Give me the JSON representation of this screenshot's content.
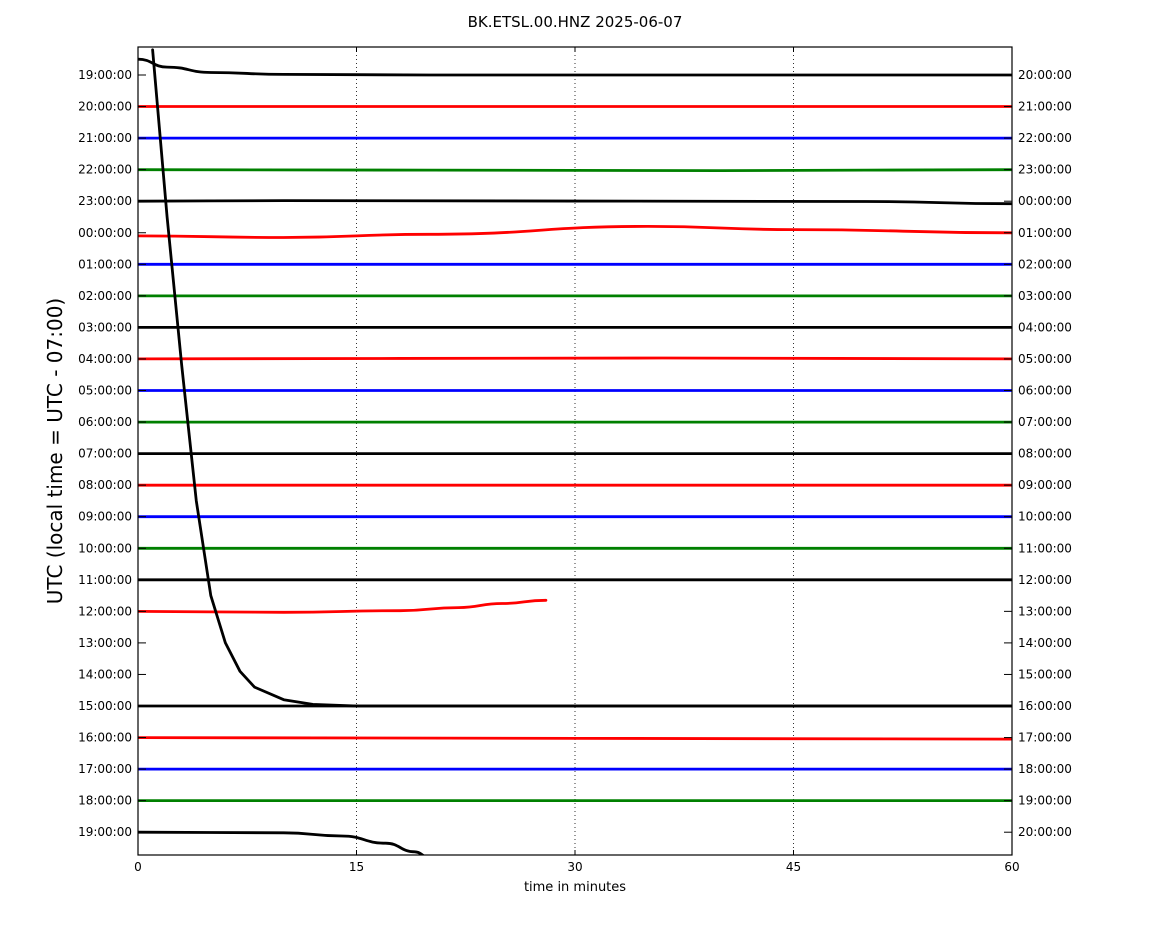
{
  "chart_data": {
    "type": "line",
    "title": "BK.ETSL.00.HNZ 2025-06-07",
    "xlabel": "time in minutes",
    "ylabel": "UTC (local time = UTC - 07:00)",
    "xlim": [
      0,
      60
    ],
    "x_ticks": [
      "0",
      "15",
      "30",
      "45",
      "60"
    ],
    "x_grid": "dotted vertical lines",
    "left_tick_labels": [
      "19:00:00",
      "20:00:00",
      "21:00:00",
      "22:00:00",
      "23:00:00",
      "00:00:00",
      "01:00:00",
      "02:00:00",
      "03:00:00",
      "04:00:00",
      "05:00:00",
      "06:00:00",
      "07:00:00",
      "08:00:00",
      "09:00:00",
      "10:00:00",
      "11:00:00",
      "12:00:00",
      "13:00:00",
      "14:00:00",
      "15:00:00",
      "16:00:00",
      "17:00:00",
      "18:00:00",
      "19:00:00"
    ],
    "right_tick_labels": [
      "20:00:00",
      "21:00:00",
      "22:00:00",
      "23:00:00",
      "00:00:00",
      "01:00:00",
      "02:00:00",
      "03:00:00",
      "04:00:00",
      "05:00:00",
      "06:00:00",
      "07:00:00",
      "08:00:00",
      "09:00:00",
      "10:00:00",
      "11:00:00",
      "12:00:00",
      "13:00:00",
      "14:00:00",
      "15:00:00",
      "16:00:00",
      "17:00:00",
      "18:00:00",
      "19:00:00",
      "20:00:00"
    ],
    "color_cycle": [
      "#000000",
      "#ff0000",
      "#0000ff",
      "#008000"
    ],
    "traces": [
      {
        "row": 0,
        "color": "#000000",
        "x": [
          0,
          2,
          5,
          10,
          20,
          60
        ],
        "y": [
          0.5,
          0.25,
          0.08,
          0.02,
          0,
          0
        ]
      },
      {
        "row": 1,
        "color": "#ff0000",
        "x": [
          0,
          60
        ],
        "y": [
          0,
          0
        ]
      },
      {
        "row": 2,
        "color": "#0000ff",
        "x": [
          0,
          60
        ],
        "y": [
          0,
          0
        ]
      },
      {
        "row": 3,
        "color": "#008000",
        "x": [
          0,
          40,
          60
        ],
        "y": [
          0,
          -0.03,
          0
        ]
      },
      {
        "row": 4,
        "color": "#000000",
        "x": [
          0,
          10,
          50,
          60
        ],
        "y": [
          0,
          0.02,
          -0.01,
          -0.08
        ]
      },
      {
        "row": 5,
        "color": "#ff0000",
        "x": [
          0,
          10,
          20,
          35,
          45,
          60
        ],
        "y": [
          -0.1,
          -0.15,
          -0.05,
          0.2,
          0.1,
          0
        ]
      },
      {
        "row": 6,
        "color": "#0000ff",
        "x": [
          0,
          60
        ],
        "y": [
          0,
          0
        ]
      },
      {
        "row": 7,
        "color": "#008000",
        "x": [
          0,
          60
        ],
        "y": [
          0,
          0
        ]
      },
      {
        "row": 8,
        "color": "#000000",
        "x": [
          0,
          60
        ],
        "y": [
          0,
          0
        ]
      },
      {
        "row": 9,
        "color": "#ff0000",
        "x": [
          0,
          36,
          60
        ],
        "y": [
          0,
          0.03,
          0
        ]
      },
      {
        "row": 10,
        "color": "#0000ff",
        "x": [
          0,
          60
        ],
        "y": [
          0,
          0
        ]
      },
      {
        "row": 11,
        "color": "#008000",
        "x": [
          0,
          60
        ],
        "y": [
          0,
          0
        ]
      },
      {
        "row": 12,
        "color": "#000000",
        "x": [
          0,
          60
        ],
        "y": [
          0,
          0
        ]
      },
      {
        "row": 13,
        "color": "#ff0000",
        "x": [
          0,
          60
        ],
        "y": [
          0,
          0
        ]
      },
      {
        "row": 14,
        "color": "#0000ff",
        "x": [
          0,
          60
        ],
        "y": [
          0,
          0
        ]
      },
      {
        "row": 15,
        "color": "#008000",
        "x": [
          0,
          60
        ],
        "y": [
          0,
          0
        ]
      },
      {
        "row": 16,
        "color": "#000000",
        "x": [
          0,
          60
        ],
        "y": [
          0,
          0
        ]
      },
      {
        "row": 17,
        "color": "#ff0000",
        "x": [
          0,
          10,
          18,
          22,
          25,
          28
        ],
        "y": [
          0,
          -0.03,
          0.02,
          0.12,
          0.25,
          0.35
        ]
      },
      {
        "row": 20,
        "color": "#000000",
        "x": [
          0,
          60
        ],
        "y": [
          0,
          0
        ]
      },
      {
        "row": 21,
        "color": "#ff0000",
        "x": [
          0,
          60
        ],
        "y": [
          0,
          -0.05
        ]
      },
      {
        "row": 22,
        "color": "#0000ff",
        "x": [
          0,
          60
        ],
        "y": [
          0,
          0
        ]
      },
      {
        "row": 23,
        "color": "#008000",
        "x": [
          0,
          60
        ],
        "y": [
          0,
          0
        ]
      },
      {
        "row": 24,
        "color": "#000000",
        "x": [
          0,
          10,
          14,
          17,
          19,
          20
        ],
        "y": [
          0,
          -0.02,
          -0.12,
          -0.35,
          -0.62,
          -0.8
        ]
      }
    ],
    "drift_trace": {
      "color": "#000000",
      "x": [
        1,
        2,
        3,
        4,
        5,
        6,
        7,
        8,
        10,
        12,
        15,
        20,
        60
      ],
      "y": [
        -0.8,
        4.5,
        9.2,
        13.5,
        16.5,
        18.0,
        18.9,
        19.4,
        19.8,
        19.95,
        20.0,
        20.0,
        20.0
      ]
    }
  }
}
